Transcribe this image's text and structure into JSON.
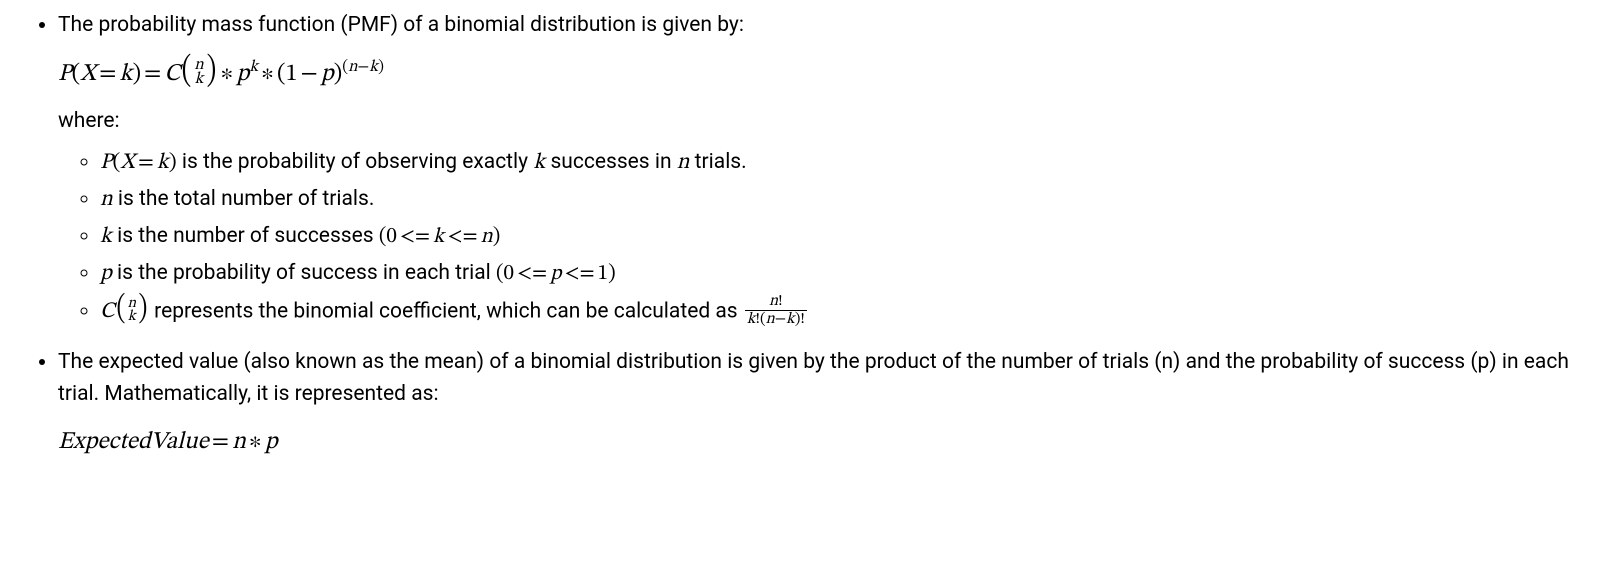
{
  "item1": {
    "intro": "The probability mass function (PMF) of a binomial distribution is given by:",
    "where": "where:",
    "sub": {
      "a_before": " is the probability of observing exactly ",
      "a_mid": " successes in ",
      "a_after": " trials.",
      "b_after": " is the total number of trials.",
      "c_before": " is the number of successes ",
      "d_before": " is the probability of success in each trial ",
      "e_mid": " represents the binomial coefficient, which can be calculated as "
    }
  },
  "item2": {
    "intro": "The expected value (also known as the mean) of a binomial distribution is given by the product of the number of trials (n) and the probability of success (p) in each trial. Mathematically, it is represented as:"
  },
  "sym": {
    "P": "P",
    "X": "X",
    "k": "k",
    "n": "n",
    "p": "p",
    "C": "C",
    "eq": "=",
    "star": "∗",
    "minus": "−",
    "one": "1",
    "zero": "0",
    "le": "<=",
    "bang": "!",
    "lpar": "(",
    "rpar": ")",
    "Expected": "ExpectedValue"
  }
}
